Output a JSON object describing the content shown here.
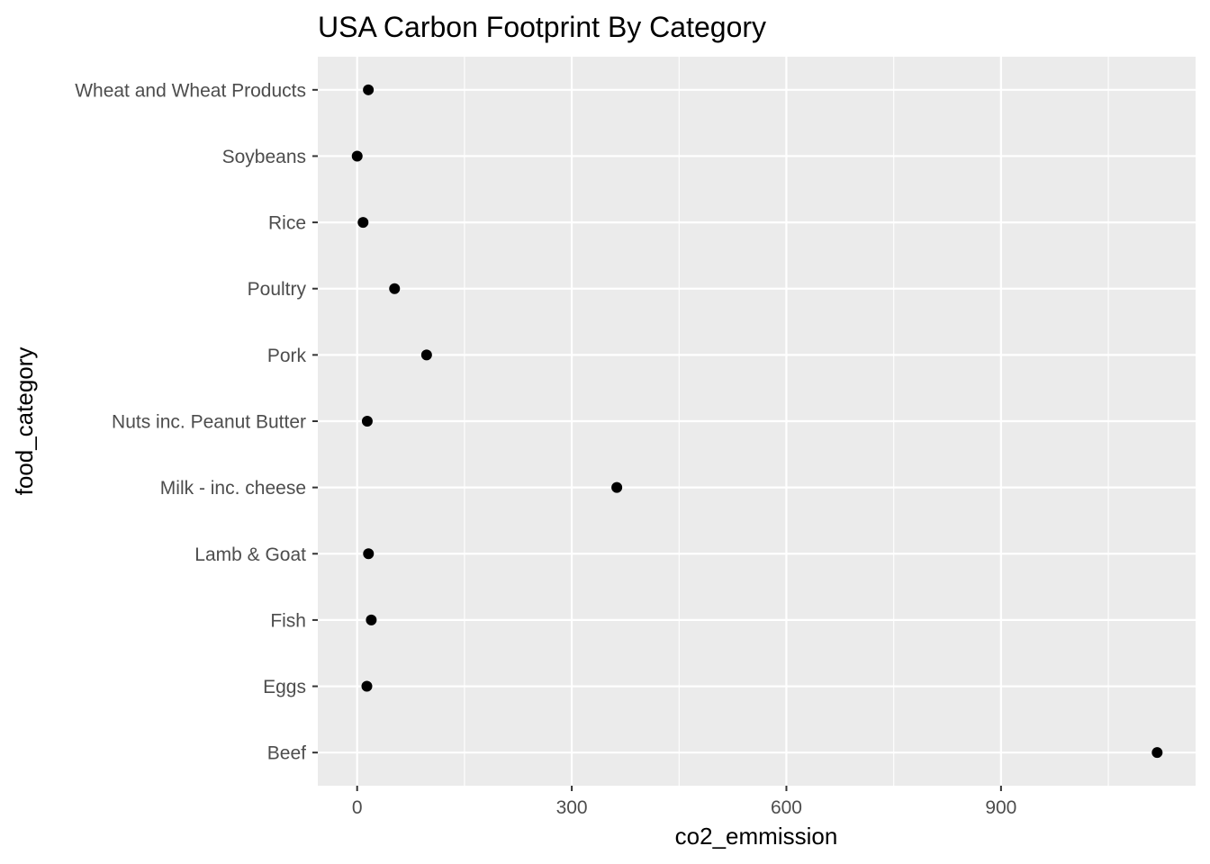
{
  "chart_data": {
    "type": "scatter",
    "title": "USA Carbon Footprint By Category",
    "xlabel": "co2_emmission",
    "ylabel": "food_category",
    "categories": [
      "Beef",
      "Eggs",
      "Fish",
      "Lamb & Goat",
      "Milk - inc. cheese",
      "Nuts inc. Peanut Butter",
      "Pork",
      "Poultry",
      "Rice",
      "Soybeans",
      "Wheat and Wheat Products"
    ],
    "values": [
      1118.29,
      13.57,
      19.75,
      15.83,
      362.96,
      14.12,
      97.07,
      52.3,
      8.28,
      0.04,
      15.64
    ],
    "xlim": [
      -55,
      1172
    ],
    "xticks": [
      0,
      300,
      600,
      900
    ],
    "xminor": [
      150,
      450,
      750,
      1050
    ],
    "grid": true,
    "panel_color": "#ebebeb",
    "point_color": "#000000"
  }
}
